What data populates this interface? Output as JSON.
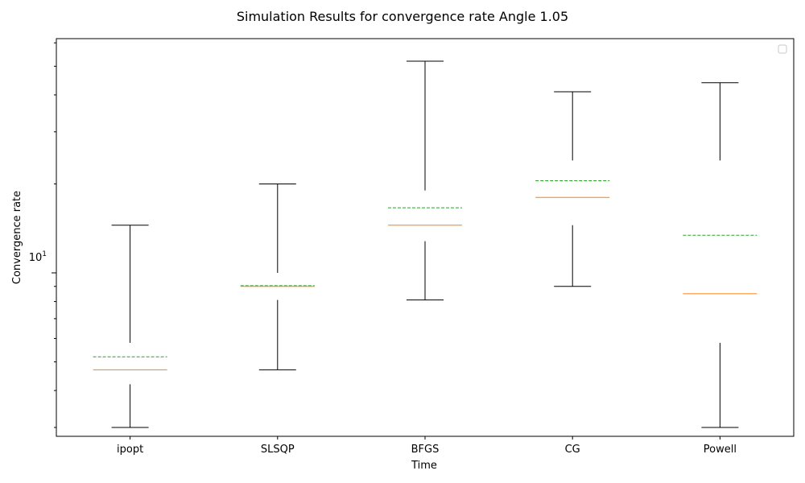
{
  "chart_data": {
    "type": "boxplot",
    "title": "Simulation Results for convergence rate Angle 1.05",
    "xlabel": "Time",
    "ylabel": "Convergence rate",
    "yscale": "log",
    "ylim": [
      2.8,
      62
    ],
    "y_tick_label": {
      "base": "10",
      "exponent": "1",
      "value": 10
    },
    "legend": {
      "placement": "top-right",
      "entries": []
    },
    "categories": [
      "ipopt",
      "SLSQP",
      "BFGS",
      "CG",
      "Powell"
    ],
    "boxes": [
      {
        "name": "ipopt",
        "whisker_low": 3.0,
        "q1": 4.2,
        "median": 4.7,
        "mean": 5.2,
        "q3": 5.8,
        "whisker_high": 14.5
      },
      {
        "name": "SLSQP",
        "whisker_low": 4.7,
        "q1": 8.1,
        "median": 9.0,
        "mean": 9.05,
        "q3": 10.0,
        "whisker_high": 20.0
      },
      {
        "name": "BFGS",
        "whisker_low": 8.1,
        "q1": 12.8,
        "median": 14.5,
        "mean": 16.6,
        "q3": 19.0,
        "whisker_high": 52.0
      },
      {
        "name": "CG",
        "whisker_low": 9.0,
        "q1": 14.5,
        "median": 18.0,
        "mean": 20.5,
        "q3": 24.0,
        "whisker_high": 41.0
      },
      {
        "name": "Powell",
        "whisker_low": 3.0,
        "q1": 5.8,
        "median": 8.5,
        "mean": 13.4,
        "q3": 24.0,
        "whisker_high": 44.0
      }
    ],
    "colors": {
      "whisker": "#000000",
      "median": "#ff7f0e",
      "mean": "#2ca02c",
      "axes": "#000000"
    }
  }
}
